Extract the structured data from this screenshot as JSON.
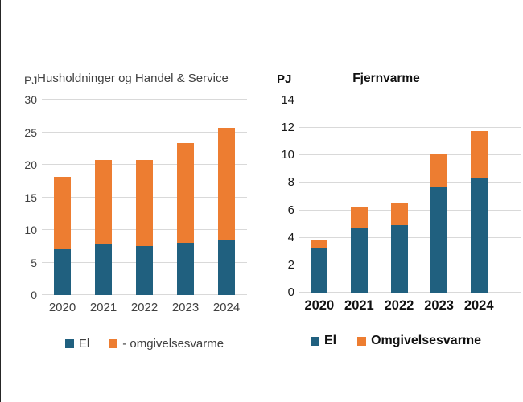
{
  "page": {
    "background": "#ffffff"
  },
  "colors": {
    "el": "#20607f",
    "omgivelsesvarme": "#ed7d31",
    "gridline": "#d9d9d9",
    "text_left_chart": "#404040",
    "text_right_chart": "#111111"
  },
  "chart_data": [
    {
      "type": "bar",
      "stacked": true,
      "title": "Husholdninger og Handel & Service",
      "ylabel": "PJ",
      "xlabel": "",
      "categories": [
        "2020",
        "2021",
        "2022",
        "2023",
        "2024"
      ],
      "series": [
        {
          "name": "El",
          "color": "#20607f",
          "values": [
            7.0,
            7.8,
            7.5,
            8.0,
            8.5
          ]
        },
        {
          "name": "- omgivelsesvarme",
          "color": "#ed7d31",
          "values": [
            11.1,
            12.9,
            13.2,
            15.3,
            17.2
          ]
        }
      ],
      "totals": [
        18.1,
        20.7,
        20.7,
        23.3,
        25.7
      ],
      "ylim": [
        0,
        30
      ],
      "yticks": [
        0,
        5,
        10,
        15,
        20,
        25,
        30
      ],
      "grid": true,
      "legend_position": "bottom"
    },
    {
      "type": "bar",
      "stacked": true,
      "title": "Fjernvarme",
      "ylabel": "PJ",
      "xlabel": "",
      "categories": [
        "2020",
        "2021",
        "2022",
        "2023",
        "2024"
      ],
      "series": [
        {
          "name": "El",
          "color": "#20607f",
          "values": [
            3.3,
            4.75,
            4.9,
            7.75,
            8.4
          ]
        },
        {
          "name": "Omgivelsesvarme",
          "color": "#ed7d31",
          "values": [
            0.55,
            1.45,
            1.6,
            2.3,
            3.35
          ]
        }
      ],
      "totals": [
        3.85,
        6.2,
        6.5,
        10.05,
        11.75
      ],
      "ylim": [
        0,
        14
      ],
      "yticks": [
        0,
        2,
        4,
        6,
        8,
        10,
        12,
        14
      ],
      "grid": true,
      "legend_position": "bottom"
    }
  ]
}
